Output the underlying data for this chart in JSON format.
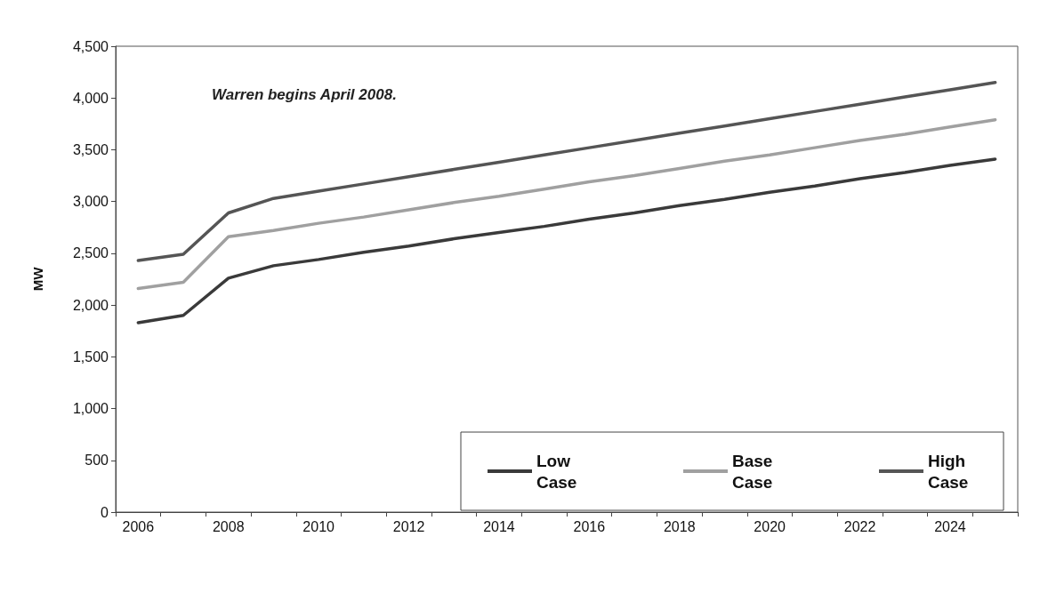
{
  "chart_data": {
    "type": "line",
    "ylabel": "MW",
    "categories": [
      "2006",
      null,
      "2008",
      null,
      "2010",
      null,
      "2012",
      null,
      "2014",
      null,
      "2016",
      null,
      "2018",
      null,
      "2020",
      null,
      "2022",
      null,
      "2024",
      null
    ],
    "series": [
      {
        "name": "Low Case",
        "color": "#3a3a3a",
        "values": [
          1830,
          1900,
          2260,
          2380,
          2440,
          2510,
          2570,
          2640,
          2700,
          2760,
          2830,
          2890,
          2960,
          3020,
          3090,
          3150,
          3220,
          3280,
          3350,
          3410
        ]
      },
      {
        "name": "Base Case",
        "color": "#a0a0a0",
        "values": [
          2160,
          2220,
          2660,
          2720,
          2790,
          2850,
          2920,
          2990,
          3050,
          3120,
          3190,
          3250,
          3320,
          3390,
          3450,
          3520,
          3590,
          3650,
          3720,
          3790
        ]
      },
      {
        "name": "High Case",
        "color": "#555555",
        "values": [
          2430,
          2490,
          2890,
          3030,
          3100,
          3170,
          3240,
          3310,
          3380,
          3450,
          3520,
          3590,
          3660,
          3730,
          3800,
          3870,
          3940,
          4010,
          4080,
          4150
        ]
      }
    ],
    "ylim": [
      0,
      4500
    ],
    "yticks": [
      0,
      500,
      {
        "value": 1000,
        "label": "1,000"
      },
      {
        "value": 1500,
        "label": "1,500"
      },
      {
        "value": 2000,
        "label": "2,000"
      },
      {
        "value": 2500,
        "label": "2,500"
      },
      {
        "value": 3000,
        "label": "3,000"
      },
      {
        "value": 3500,
        "label": "3,500"
      },
      {
        "value": 4000,
        "label": "4,000"
      },
      {
        "value": 4500,
        "label": "4,500"
      }
    ],
    "grid": false,
    "legend": "bottom right",
    "marker": "none",
    "line_style": "solid",
    "annotations": [
      "Warren begins April 2008."
    ]
  }
}
